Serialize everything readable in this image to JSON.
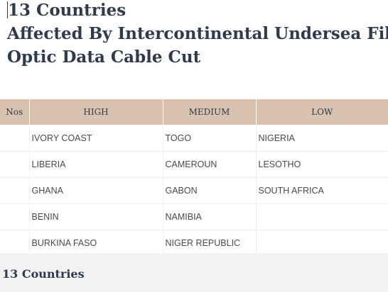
{
  "heading": {
    "line1": "13 Countries",
    "line2": "Affected By Intercontinental Undersea Fibre",
    "line3": "Optic Data Cable Cut"
  },
  "table": {
    "headers": [
      "Nos",
      "HIGH",
      "MEDIUM",
      "LOW"
    ],
    "rows": [
      [
        "",
        "IVORY COAST",
        "TOGO",
        "NIGERIA"
      ],
      [
        "",
        "LIBERIA",
        "CAMEROUN",
        "LESOTHO"
      ],
      [
        "",
        "GHANA",
        "GABON",
        "SOUTH AFRICA"
      ],
      [
        "",
        "BENIN",
        "NAMIBIA",
        ""
      ],
      [
        "",
        "BURKINA FASO",
        "NIGER REPUBLIC",
        ""
      ]
    ]
  },
  "footer": {
    "text": "13 Countries"
  }
}
